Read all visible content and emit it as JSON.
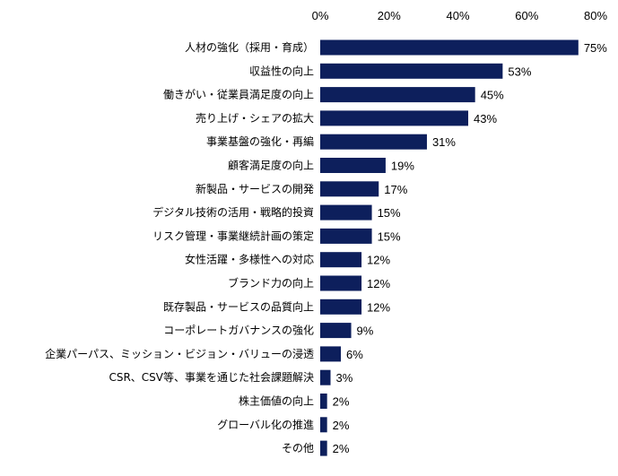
{
  "chart_data": {
    "type": "bar",
    "orientation": "horizontal",
    "title": "",
    "xlabel": "",
    "ylabel": "",
    "xlim": [
      0,
      80
    ],
    "x_ticks": [
      0,
      20,
      40,
      60,
      80
    ],
    "x_tick_labels": [
      "0%",
      "20%",
      "40%",
      "60%",
      "80%"
    ],
    "x_axis_position": "top",
    "grid": false,
    "legend": "none",
    "bar_color": "#0d1f5c",
    "categories": [
      "人材の強化（採用・育成）",
      "収益性の向上",
      "働きがい・従業員満足度の向上",
      "売り上げ・シェアの拡大",
      "事業基盤の強化・再編",
      "顧客満足度の向上",
      "新製品・サービスの開発",
      "デジタル技術の活用・戦略的投資",
      "リスク管理・事業継続計画の策定",
      "女性活躍・多様性への対応",
      "ブランド力の向上",
      "既存製品・サービスの品質向上",
      "コーポレートガバナンスの強化",
      "企業パーパス、ミッション・ビジョン・バリューの浸透",
      "CSR、CSV等、事業を通じた社会課題解決",
      "株主価値の向上",
      "グローバル化の推進",
      "その他"
    ],
    "values": [
      75,
      53,
      45,
      43,
      31,
      19,
      17,
      15,
      15,
      12,
      12,
      12,
      9,
      6,
      3,
      2,
      2,
      2
    ],
    "value_labels": [
      "75%",
      "53%",
      "45%",
      "43%",
      "31%",
      "19%",
      "17%",
      "15%",
      "15%",
      "12%",
      "12%",
      "12%",
      "9%",
      "6%",
      "3%",
      "2%",
      "2%",
      "2%"
    ]
  }
}
